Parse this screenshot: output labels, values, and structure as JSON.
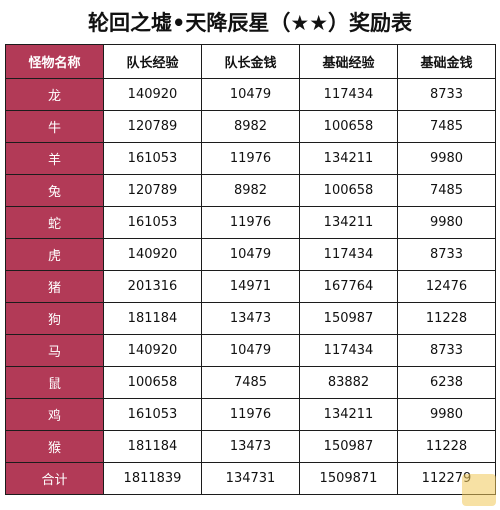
{
  "title": "轮回之墟•天降辰星（★★）奖励表",
  "columns": [
    "怪物名称",
    "队长经验",
    "队长金钱",
    "基础经验",
    "基础金钱"
  ],
  "rows": [
    [
      "龙",
      "140920",
      "10479",
      "117434",
      "8733"
    ],
    [
      "牛",
      "120789",
      "8982",
      "100658",
      "7485"
    ],
    [
      "羊",
      "161053",
      "11976",
      "134211",
      "9980"
    ],
    [
      "兔",
      "120789",
      "8982",
      "100658",
      "7485"
    ],
    [
      "蛇",
      "161053",
      "11976",
      "134211",
      "9980"
    ],
    [
      "虎",
      "140920",
      "10479",
      "117434",
      "8733"
    ],
    [
      "猪",
      "201316",
      "14971",
      "167764",
      "12476"
    ],
    [
      "狗",
      "181184",
      "13473",
      "150987",
      "11228"
    ],
    [
      "马",
      "140920",
      "10479",
      "117434",
      "8733"
    ],
    [
      "鼠",
      "100658",
      "7485",
      "83882",
      "6238"
    ],
    [
      "鸡",
      "161053",
      "11976",
      "134211",
      "9980"
    ],
    [
      "猴",
      "181184",
      "13473",
      "150987",
      "11228"
    ],
    [
      "合计",
      "1811839",
      "134731",
      "1509871",
      "112279"
    ]
  ],
  "colors": {
    "name_cell_bg": "#b23a57",
    "name_cell_text": "#ffffff",
    "border": "#1c1c1c"
  },
  "watermark": {
    "icon": "logo-watermark"
  }
}
